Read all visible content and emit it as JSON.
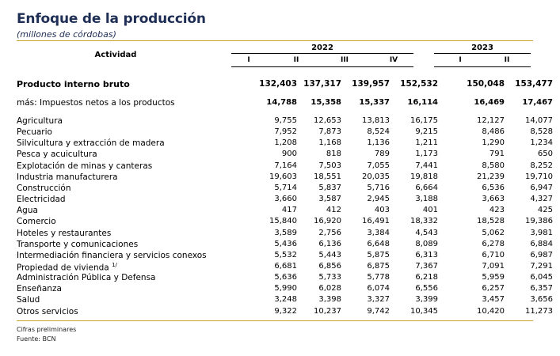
{
  "title": "Enfoque de la producción",
  "subtitle": "(millones de córdobas)",
  "header": {
    "activity": "Actividad",
    "years": [
      {
        "year": "2022",
        "quarters": [
          "I",
          "II",
          "III",
          "IV"
        ]
      },
      {
        "year": "2023",
        "quarters": [
          "I",
          "II"
        ]
      }
    ]
  },
  "rows": [
    {
      "label": "Producto interno bruto",
      "style": "bold",
      "values": [
        "132,403",
        "137,317",
        "139,957",
        "152,532",
        "150,048",
        "153,477"
      ]
    },
    {
      "label": "más: Impuestos netos a los productos",
      "style": "semi",
      "values": [
        "14,788",
        "15,358",
        "15,337",
        "16,114",
        "16,469",
        "17,467"
      ]
    },
    {
      "label": "Agricultura",
      "values": [
        "9,755",
        "12,653",
        "13,813",
        "16,175",
        "12,127",
        "14,077"
      ]
    },
    {
      "label": "Pecuario",
      "values": [
        "7,952",
        "7,873",
        "8,524",
        "9,215",
        "8,486",
        "8,528"
      ]
    },
    {
      "label": "Silvicultura y extracción de madera",
      "values": [
        "1,208",
        "1,168",
        "1,136",
        "1,211",
        "1,290",
        "1,234"
      ]
    },
    {
      "label": "Pesca y acuicultura",
      "values": [
        "900",
        "818",
        "789",
        "1,173",
        "791",
        "650"
      ]
    },
    {
      "label": "Explotación de minas y canteras",
      "values": [
        "7,164",
        "7,503",
        "7,055",
        "7,441",
        "8,580",
        "8,252"
      ]
    },
    {
      "label": "Industria manufacturera",
      "values": [
        "19,603",
        "18,551",
        "20,035",
        "19,818",
        "21,239",
        "19,710"
      ]
    },
    {
      "label": "Construcción",
      "values": [
        "5,714",
        "5,837",
        "5,716",
        "6,664",
        "6,536",
        "6,947"
      ]
    },
    {
      "label": "Electricidad",
      "values": [
        "3,660",
        "3,587",
        "2,945",
        "3,188",
        "3,663",
        "4,327"
      ]
    },
    {
      "label": "Agua",
      "values": [
        "417",
        "412",
        "403",
        "401",
        "423",
        "425"
      ]
    },
    {
      "label": "Comercio",
      "values": [
        "15,840",
        "16,920",
        "16,491",
        "18,332",
        "18,528",
        "19,386"
      ]
    },
    {
      "label": "Hoteles y restaurantes",
      "values": [
        "3,589",
        "2,756",
        "3,384",
        "4,543",
        "5,062",
        "3,981"
      ]
    },
    {
      "label": "Transporte y comunicaciones",
      "values": [
        "5,436",
        "6,136",
        "6,648",
        "8,089",
        "6,278",
        "6,884"
      ]
    },
    {
      "label": "Intermediación financiera y servicios conexos",
      "values": [
        "5,532",
        "5,443",
        "5,875",
        "6,313",
        "6,710",
        "6,987"
      ]
    },
    {
      "label": "Propiedad de vivienda",
      "sup": "1/",
      "values": [
        "6,681",
        "6,856",
        "6,875",
        "7,367",
        "7,091",
        "7,291"
      ]
    },
    {
      "label": "Administración Pública y Defensa",
      "values": [
        "5,636",
        "5,733",
        "5,778",
        "6,218",
        "5,959",
        "6,045"
      ]
    },
    {
      "label": "Enseñanza",
      "values": [
        "5,990",
        "6,028",
        "6,074",
        "6,556",
        "6,257",
        "6,357"
      ]
    },
    {
      "label": "Salud",
      "values": [
        "3,248",
        "3,398",
        "3,327",
        "3,399",
        "3,457",
        "3,656"
      ]
    },
    {
      "label": "Otros servicios",
      "values": [
        "9,322",
        "10,237",
        "9,742",
        "10,345",
        "10,420",
        "11,273"
      ]
    }
  ],
  "notes": [
    "Cifras preliminares",
    "Fuente: BCN"
  ]
}
